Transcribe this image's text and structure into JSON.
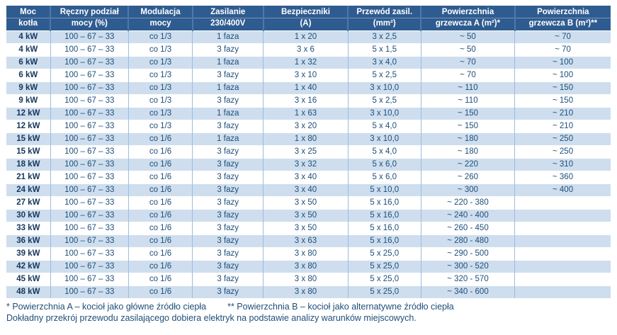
{
  "table": {
    "columns": [
      {
        "line1": "Moc",
        "line2": "kotła"
      },
      {
        "line1": "Ręczny podział",
        "line2": "mocy (%)"
      },
      {
        "line1": "Modulacja",
        "line2": "mocy"
      },
      {
        "line1": "Zasilanie",
        "line2": "230/400V"
      },
      {
        "line1": "Bezpieczniki",
        "line2": "(A)"
      },
      {
        "line1": "Przewód zasil.",
        "line2": "(mm²)"
      },
      {
        "line1": "Powierzchnia",
        "line2": "grzewcza A (m²)*"
      },
      {
        "line1": "Powierzchnia",
        "line2": "grzewcza B (m²)**"
      }
    ],
    "rows": [
      [
        "4 kW",
        "100 – 67 – 33",
        "co 1/3",
        "1 faza",
        "1 x 20",
        "3 x 2,5",
        "~ 50",
        "~ 70"
      ],
      [
        "4 kW",
        "100 – 67 – 33",
        "co 1/3",
        "3 fazy",
        "3 x 6",
        "5 x 1,5",
        "~ 50",
        "~ 70"
      ],
      [
        "6 kW",
        "100 – 67 – 33",
        "co 1/3",
        "1 faza",
        "1 x 32",
        "3 x 4,0",
        "~ 70",
        "~ 100"
      ],
      [
        "6 kW",
        "100 – 67 – 33",
        "co 1/3",
        "3 fazy",
        "3 x 10",
        "5 x 2,5",
        "~ 70",
        "~ 100"
      ],
      [
        "9 kW",
        "100 – 67 – 33",
        "co 1/3",
        "1 faza",
        "1 x 40",
        "3 x 10,0",
        "~ 110",
        "~ 150"
      ],
      [
        "9 kW",
        "100 – 67 – 33",
        "co 1/3",
        "3 fazy",
        "3 x 16",
        "5 x 2,5",
        "~ 110",
        "~ 150"
      ],
      [
        "12 kW",
        "100 – 67 – 33",
        "co 1/3",
        "1 faza",
        "1 x 63",
        "3 x 10,0",
        "~ 150",
        "~ 210"
      ],
      [
        "12 kW",
        "100 – 67 – 33",
        "co 1/3",
        "3 fazy",
        "3 x 20",
        "5 x 4,0",
        "~ 150",
        "~ 210"
      ],
      [
        "15 kW",
        "100 – 67 – 33",
        "co 1/6",
        "1 faza",
        "1 x 80",
        "3 x 10,0",
        "~ 180",
        "~ 250"
      ],
      [
        "15 kW",
        "100 – 67 – 33",
        "co 1/6",
        "3 fazy",
        "3 x 25",
        "5 x 4,0",
        "~ 180",
        "~ 250"
      ],
      [
        "18 kW",
        "100 – 67 – 33",
        "co 1/6",
        "3 fazy",
        "3 x 32",
        "5 x 6,0",
        "~ 220",
        "~ 310"
      ],
      [
        "21 kW",
        "100 – 67 – 33",
        "co 1/6",
        "3 fazy",
        "3 x 40",
        "5 x 6,0",
        "~ 260",
        "~ 360"
      ],
      [
        "24 kW",
        "100 – 67 – 33",
        "co 1/6",
        "3 fazy",
        "3 x 40",
        "5 x 10,0",
        "~ 300",
        "~ 400"
      ],
      [
        "27 kW",
        "100 – 67 – 33",
        "co 1/6",
        "3 fazy",
        "3 x 50",
        "5 x 16,0",
        "~ 220 - 380",
        ""
      ],
      [
        "30 kW",
        "100 – 67 – 33",
        "co 1/6",
        "3 fazy",
        "3 x 50",
        "5 x 16,0",
        "~ 240 - 400",
        ""
      ],
      [
        "33 kW",
        "100 – 67 – 33",
        "co 1/6",
        "3 fazy",
        "3 x 50",
        "5 x 16,0",
        "~ 260 - 450",
        ""
      ],
      [
        "36 kW",
        "100 – 67 – 33",
        "co 1/6",
        "3 fazy",
        "3 x 63",
        "5 x 16,0",
        "~ 280 - 480",
        ""
      ],
      [
        "39 kW",
        "100 – 67 – 33",
        "co 1/6",
        "3 fazy",
        "3 x 80",
        "5 x 25,0",
        "~ 290 - 500",
        ""
      ],
      [
        "42 kW",
        "100 – 67 – 33",
        "co 1/6",
        "3 fazy",
        "3 x 80",
        "5 x 25,0",
        "~ 300 - 520",
        ""
      ],
      [
        "45 kW",
        "100 – 67 – 33",
        "co 1/6",
        "3 fazy",
        "3 x 80",
        "5 x 25,0",
        "~ 320 - 570",
        ""
      ],
      [
        "48 kW",
        "100 – 67 – 33",
        "co 1/6",
        "3 fazy",
        "3 x 80",
        "5 x 25,0",
        "~ 340 - 600",
        ""
      ]
    ]
  },
  "footnotes": {
    "a": "* Powierzchnia A – kocioł jako główne źródło ciepła",
    "b": "** Powierzchnia B – kocioł jako alternatywne źródło ciepła",
    "cable": "Dokładny przekrój przewodu zasilającego dobiera elektryk na podstawie analizy warunków miejscowych."
  },
  "colors": {
    "header_bg": "#2F5C90",
    "header_text": "#FFFFFF",
    "row_alt_bg": "#CEDEEE",
    "row_plain_bg": "#FFFFFF",
    "body_text": "#1F4E79",
    "first_col_text": "#17375D",
    "grid_line": "#9FBBDB"
  }
}
